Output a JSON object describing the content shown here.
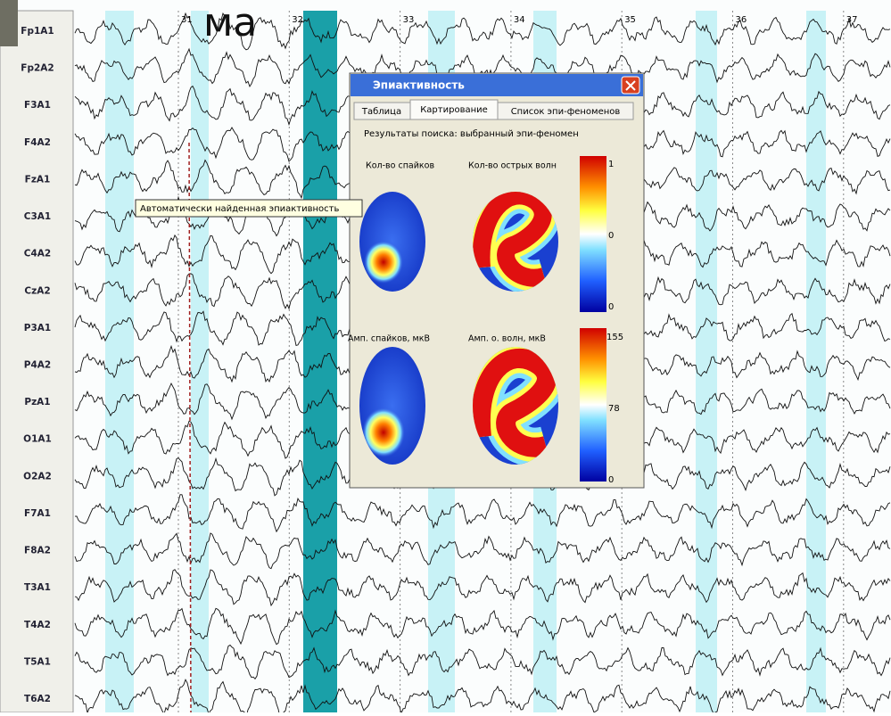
{
  "overlay_text": "ма",
  "channels": [
    "Fp1A1",
    "Fp2A2",
    "F3A1",
    "F4A2",
    "FzA1",
    "C3A1",
    "C4A2",
    "CzA2",
    "P3A1",
    "P4A2",
    "PzA1",
    "O1A1",
    "O2A2",
    "F7A1",
    "F8A2",
    "T3A1",
    "T4A2",
    "T5A1",
    "T6A2"
  ],
  "time_marks": [
    "31",
    "32",
    "33",
    "34",
    "35",
    "36",
    "37"
  ],
  "tooltip": "Автоматически найденная эпиактивность",
  "dialog": {
    "title": "Эпиактивность",
    "tabs": [
      "Таблица",
      "Картирование",
      "Список эпи-феноменов"
    ],
    "results_label": "Результаты поиска: выбранный эпи-феномен",
    "map_labels": [
      "Кол-во спайков",
      "Кол-во острых волн",
      "Амп. спайков, мкВ",
      "Амп. о. волн, мкВ"
    ],
    "scales": [
      {
        "top": "1",
        "mid": "0",
        "bottom": "0"
      },
      {
        "top": "155",
        "mid": "78",
        "bottom": "0"
      }
    ]
  }
}
